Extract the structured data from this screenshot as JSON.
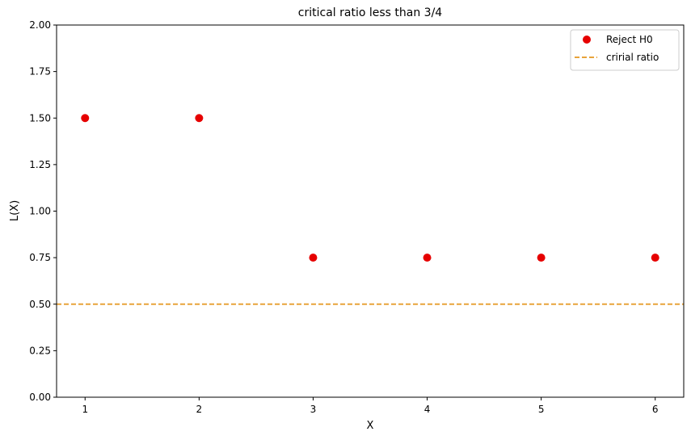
{
  "chart_data": {
    "type": "scatter",
    "title": "critical ratio less than 3/4",
    "xlabel": "X",
    "ylabel": "L(X)",
    "xlim": [
      0.75,
      6.25
    ],
    "ylim": [
      0,
      2
    ],
    "xticks": [
      1,
      2,
      3,
      4,
      5,
      6
    ],
    "yticks": [
      0.0,
      0.25,
      0.5,
      0.75,
      1.0,
      1.25,
      1.5,
      1.75,
      2.0
    ],
    "ytick_labels": [
      "0.00",
      "0.25",
      "0.50",
      "0.75",
      "1.00",
      "1.25",
      "1.50",
      "1.75",
      "2.00"
    ],
    "grid": false,
    "legend_position": "top-right",
    "series": [
      {
        "name": "Reject H0",
        "kind": "scatter",
        "color": "#e60000",
        "x": [
          1,
          2,
          3,
          4,
          5,
          6
        ],
        "y": [
          1.5,
          1.5,
          0.75,
          0.75,
          0.75,
          0.75
        ]
      }
    ],
    "hlines": [
      {
        "name": "cririal ratio",
        "y": 0.5,
        "color": "#e8a33a",
        "style": "dashed"
      }
    ]
  }
}
